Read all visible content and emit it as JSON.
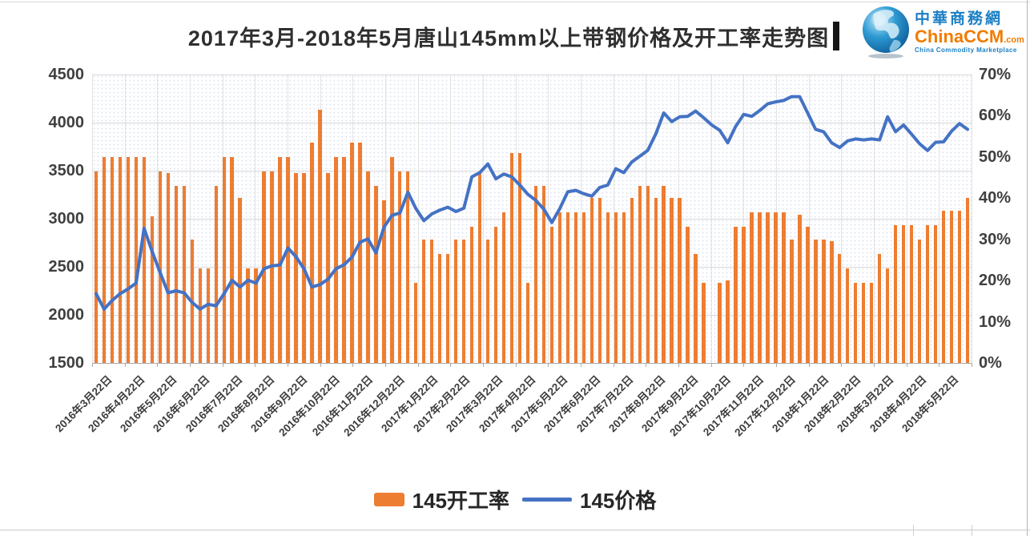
{
  "header": {
    "title": "2017年3月-2018年5月唐山145mm以上带钢价格及开工率走势图",
    "logo": {
      "name_cn": "中華商務網",
      "name_en": "ChinaCCM",
      "domain_suffix": ".com",
      "tagline": "China Commodity Marketplace",
      "brand_blue": "#1b7fc4",
      "brand_orange": "#f07c00"
    }
  },
  "chart_data": {
    "type": "combo-bar-line",
    "title": "2017年3月-2018年5月唐山145mm以上带钢价格及开工率走势图",
    "grid": true,
    "legend_position": "bottom",
    "x_labels": [
      "2016年3月22日",
      "2016年4月22日",
      "2016年5月22日",
      "2016年6月22日",
      "2016年7月22日",
      "2016年8月22日",
      "2016年9月22日",
      "2016年10月22日",
      "2016年11月22日",
      "2016年12月22日",
      "2017年1月22日",
      "2017年2月22日",
      "2017年3月22日",
      "2017年4月22日",
      "2017年5月22日",
      "2017年6月22日",
      "2017年7月22日",
      "2017年8月22日",
      "2017年9月22日",
      "2017年10月22日",
      "2017年11月22日",
      "2017年12月22日",
      "2018年1月22日",
      "2018年2月22日",
      "2018年3月22日",
      "2018年4月22日",
      "2018年5月22日"
    ],
    "left_axis": {
      "title": "price",
      "min": 1500,
      "max": 4500,
      "step": 500,
      "ticks": [
        "4500",
        "4000",
        "3500",
        "3000",
        "2500",
        "2000",
        "1500"
      ]
    },
    "right_axis": {
      "title": "operating rate",
      "min": 0,
      "max": 70,
      "step": 10,
      "ticks": [
        "70%",
        "60%",
        "50%",
        "40%",
        "30%",
        "20%",
        "10%",
        "0%"
      ]
    },
    "series": [
      {
        "name": "145开工率",
        "type": "bar",
        "axis": "right",
        "unit": "%",
        "color": "#ED7D31",
        "values": [
          46.5,
          50,
          50,
          50,
          50,
          50,
          50,
          35.5,
          46.5,
          46,
          43,
          43,
          30,
          23,
          23,
          43,
          50,
          50,
          40,
          23,
          23,
          46.5,
          46.5,
          50,
          50,
          46,
          46,
          53.5,
          61.5,
          46,
          50,
          50,
          53.5,
          53.5,
          46.5,
          43,
          39.5,
          50,
          46.5,
          46.5,
          19.5,
          30,
          30,
          26.5,
          26.5,
          30,
          30,
          33,
          46,
          30,
          33,
          36.5,
          51,
          51,
          19.5,
          43,
          43,
          33,
          36.5,
          36.5,
          36.5,
          36.5,
          40,
          40,
          36.5,
          36.5,
          36.5,
          40,
          43,
          43,
          40,
          43,
          40,
          40,
          33,
          26.5,
          19.5,
          0,
          19.5,
          20,
          33,
          33,
          36.5,
          36.5,
          36.5,
          36.5,
          36.5,
          30,
          36,
          33,
          30,
          30,
          29.5,
          26.5,
          23,
          19.5,
          19.5,
          19.5,
          26.5,
          23,
          33.5,
          33.5,
          33.5,
          30,
          33.5,
          33.5,
          37,
          37,
          37,
          40
        ]
      },
      {
        "name": "145价格",
        "type": "line",
        "axis": "left",
        "unit": "yuan",
        "color": "#4472C4",
        "values": [
          2220,
          2060,
          2150,
          2220,
          2270,
          2330,
          2900,
          2660,
          2440,
          2230,
          2250,
          2230,
          2130,
          2060,
          2110,
          2095,
          2220,
          2360,
          2290,
          2360,
          2330,
          2480,
          2510,
          2520,
          2695,
          2605,
          2480,
          2290,
          2315,
          2370,
          2480,
          2520,
          2600,
          2755,
          2790,
          2645,
          2910,
          3035,
          3060,
          3275,
          3105,
          2980,
          3050,
          3090,
          3120,
          3075,
          3110,
          3435,
          3480,
          3570,
          3415,
          3465,
          3435,
          3350,
          3255,
          3190,
          3100,
          2960,
          3105,
          3280,
          3295,
          3260,
          3235,
          3325,
          3350,
          3520,
          3480,
          3590,
          3650,
          3710,
          3880,
          4100,
          4010,
          4060,
          4065,
          4120,
          4050,
          3975,
          3920,
          3790,
          3960,
          4085,
          4065,
          4125,
          4195,
          4215,
          4230,
          4270,
          4270,
          4100,
          3930,
          3905,
          3790,
          3740,
          3810,
          3830,
          3820,
          3830,
          3820,
          4060,
          3905,
          3975,
          3880,
          3780,
          3710,
          3795,
          3800,
          3910,
          3990,
          3930
        ]
      }
    ]
  }
}
